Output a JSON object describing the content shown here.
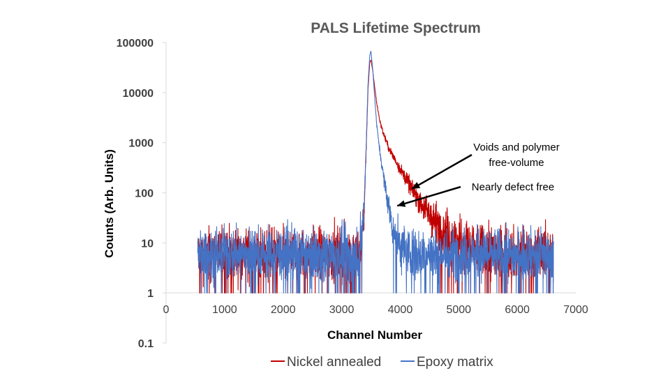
{
  "chart_data": {
    "type": "line",
    "title": "PALS Lifetime Spectrum",
    "xlabel": "Channel Number",
    "ylabel": "Counts (Arb. Units)",
    "xlim": [
      0,
      7000
    ],
    "ylim": [
      0.1,
      100000
    ],
    "y_scale": "log",
    "grid": false,
    "x_ticks": [
      0,
      1000,
      2000,
      3000,
      4000,
      5000,
      6000,
      7000
    ],
    "x_tick_labels": [
      "0",
      "1000",
      "2000",
      "3000",
      "4000",
      "5000",
      "6000",
      "7000"
    ],
    "y_ticks": [
      0.1,
      1,
      10,
      100,
      1000,
      10000,
      100000
    ],
    "y_tick_labels": [
      "0.1",
      "1",
      "10",
      "100",
      "1000",
      "10000",
      "100000"
    ],
    "legend_position": "bottom",
    "series": [
      {
        "name": "Nickel annealed",
        "color": "#C00000",
        "x_range": [
          540,
          6620
        ],
        "baseline_level": 6,
        "x": [
          540,
          3300,
          3380,
          3420,
          3450,
          3480,
          3500,
          3530,
          3560,
          3600,
          3650,
          3700,
          3800,
          3900,
          4000,
          4100,
          4200,
          4300,
          4400,
          4500,
          4600,
          4700,
          4800,
          4900,
          5000,
          5100,
          5200,
          5400,
          5600,
          6620
        ],
        "values": [
          6,
          6,
          30,
          800,
          12000,
          40000,
          45000,
          28000,
          14000,
          6000,
          2800,
          1700,
          800,
          480,
          300,
          190,
          120,
          78,
          52,
          36,
          26,
          19,
          15,
          12,
          10,
          9,
          8,
          7,
          6.5,
          6
        ]
      },
      {
        "name": "Epoxy matrix",
        "color": "#4472C4",
        "x_range": [
          540,
          6620
        ],
        "baseline_level": 6,
        "x": [
          540,
          3300,
          3380,
          3420,
          3450,
          3480,
          3500,
          3530,
          3560,
          3600,
          3650,
          3700,
          3750,
          3800,
          3850,
          3900,
          3950,
          4000,
          4050,
          4100,
          4200,
          4400,
          6620
        ],
        "values": [
          6,
          6,
          40,
          1000,
          15000,
          55000,
          68000,
          30000,
          9000,
          2200,
          700,
          280,
          120,
          55,
          28,
          16,
          11,
          9,
          8,
          7,
          6.5,
          6,
          6
        ]
      }
    ],
    "annotations": [
      {
        "text_lines": [
          "Voids and polymer",
          "free-volume"
        ],
        "points_to_series": "Nickel annealed",
        "arrow_to": [
          4200,
          120
        ]
      },
      {
        "text_lines": [
          "Nearly defect free"
        ],
        "points_to_series": "Epoxy matrix",
        "arrow_to": [
          3950,
          55
        ]
      }
    ]
  }
}
